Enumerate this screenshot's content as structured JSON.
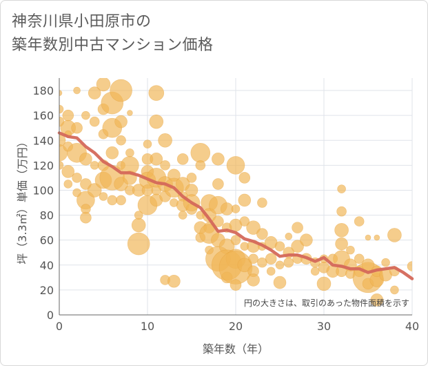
{
  "chart_data": {
    "type": "scatter",
    "title_lines": [
      "神奈川県小田原市の",
      "築年数別中古マンション価格"
    ],
    "xlabel": "築年数（年）",
    "ylabel": "坪（3.3㎡）単価（万円）",
    "xlim": [
      0,
      40
    ],
    "ylim": [
      0,
      190
    ],
    "x_ticks": [
      0,
      10,
      20,
      30,
      40
    ],
    "y_ticks": [
      0,
      20,
      40,
      60,
      80,
      100,
      120,
      140,
      160,
      180
    ],
    "grid": true,
    "note": "円の大きさは、取引のあった物件面積を示す",
    "colors": {
      "bubble": "#f0b555",
      "trend": "#d4685a",
      "grid": "#dfe3ea"
    },
    "bubbles": [
      [
        0,
        178,
        4
      ],
      [
        0,
        165,
        6
      ],
      [
        0,
        155,
        7
      ],
      [
        0,
        140,
        9
      ],
      [
        0,
        130,
        12
      ],
      [
        0,
        120,
        6
      ],
      [
        1,
        160,
        8
      ],
      [
        1,
        150,
        11
      ],
      [
        1,
        135,
        7
      ],
      [
        1,
        115,
        9
      ],
      [
        1,
        105,
        6
      ],
      [
        1,
        145,
        5
      ],
      [
        2,
        180,
        5
      ],
      [
        2,
        150,
        8
      ],
      [
        2,
        130,
        14
      ],
      [
        2,
        110,
        7
      ],
      [
        2,
        98,
        6
      ],
      [
        3,
        160,
        6
      ],
      [
        3,
        125,
        9
      ],
      [
        3,
        105,
        8
      ],
      [
        3,
        92,
        13
      ],
      [
        3,
        85,
        7
      ],
      [
        3,
        78,
        8
      ],
      [
        4,
        178,
        9
      ],
      [
        4,
        155,
        7
      ],
      [
        4,
        120,
        6
      ],
      [
        4,
        100,
        10
      ],
      [
        5,
        185,
        10
      ],
      [
        5,
        165,
        8
      ],
      [
        5,
        145,
        7
      ],
      [
        5,
        120,
        8
      ],
      [
        5,
        108,
        12
      ],
      [
        5,
        95,
        6
      ],
      [
        6,
        170,
        16
      ],
      [
        6,
        150,
        14
      ],
      [
        6,
        130,
        9
      ],
      [
        6,
        110,
        18
      ],
      [
        6,
        92,
        7
      ],
      [
        7,
        180,
        16
      ],
      [
        7,
        155,
        9
      ],
      [
        7,
        140,
        7
      ],
      [
        7,
        120,
        6
      ],
      [
        7,
        105,
        10
      ],
      [
        7,
        92,
        7
      ],
      [
        8,
        162,
        4
      ],
      [
        8,
        130,
        6
      ],
      [
        8,
        120,
        13
      ],
      [
        8,
        110,
        10
      ],
      [
        8,
        100,
        7
      ],
      [
        9,
        100,
        9
      ],
      [
        9,
        72,
        10
      ],
      [
        9,
        57,
        16
      ],
      [
        9,
        80,
        6
      ],
      [
        10,
        137,
        6
      ],
      [
        10,
        125,
        8
      ],
      [
        10,
        115,
        9
      ],
      [
        10,
        108,
        12
      ],
      [
        10,
        100,
        8
      ],
      [
        10,
        88,
        14
      ],
      [
        11,
        178,
        11
      ],
      [
        11,
        155,
        10
      ],
      [
        11,
        125,
        9
      ],
      [
        11,
        110,
        14
      ],
      [
        11,
        100,
        7
      ],
      [
        11,
        92,
        9
      ],
      [
        12,
        140,
        10
      ],
      [
        12,
        120,
        7
      ],
      [
        12,
        105,
        11
      ],
      [
        12,
        95,
        8
      ],
      [
        12,
        28,
        7
      ],
      [
        13,
        112,
        9
      ],
      [
        13,
        102,
        14
      ],
      [
        13,
        27,
        9
      ],
      [
        13,
        90,
        6
      ],
      [
        14,
        125,
        8
      ],
      [
        14,
        105,
        10
      ],
      [
        14,
        95,
        7
      ],
      [
        14,
        88,
        9
      ],
      [
        14,
        80,
        6
      ],
      [
        15,
        110,
        7
      ],
      [
        15,
        100,
        9
      ],
      [
        15,
        85,
        8
      ],
      [
        15,
        90,
        12
      ],
      [
        16,
        130,
        14
      ],
      [
        16,
        120,
        7
      ],
      [
        16,
        80,
        6
      ],
      [
        16,
        70,
        9
      ],
      [
        16,
        62,
        7
      ],
      [
        17,
        90,
        12
      ],
      [
        17,
        80,
        10
      ],
      [
        17,
        70,
        8
      ],
      [
        17,
        65,
        14
      ],
      [
        17,
        52,
        6
      ],
      [
        18,
        125,
        9
      ],
      [
        18,
        105,
        8
      ],
      [
        18,
        88,
        13
      ],
      [
        18,
        75,
        8
      ],
      [
        18,
        60,
        10
      ],
      [
        18,
        45,
        18
      ],
      [
        19,
        85,
        9
      ],
      [
        19,
        70,
        7
      ],
      [
        19,
        55,
        11
      ],
      [
        19,
        40,
        22
      ],
      [
        19,
        30,
        8
      ],
      [
        20,
        120,
        13
      ],
      [
        20,
        85,
        6
      ],
      [
        20,
        72,
        9
      ],
      [
        20,
        60,
        7
      ],
      [
        20,
        45,
        14
      ],
      [
        20,
        38,
        24
      ],
      [
        20,
        24,
        8
      ],
      [
        21,
        110,
        8
      ],
      [
        21,
        92,
        9
      ],
      [
        21,
        75,
        7
      ],
      [
        21,
        55,
        6
      ],
      [
        21,
        40,
        10
      ],
      [
        22,
        70,
        10
      ],
      [
        22,
        55,
        9
      ],
      [
        22,
        45,
        7
      ],
      [
        22,
        35,
        8
      ],
      [
        22,
        28,
        9
      ],
      [
        23,
        90,
        7
      ],
      [
        23,
        65,
        8
      ],
      [
        23,
        55,
        6
      ],
      [
        23,
        42,
        7
      ],
      [
        24,
        58,
        9
      ],
      [
        24,
        45,
        8
      ],
      [
        24,
        35,
        6
      ],
      [
        25,
        55,
        7
      ],
      [
        25,
        40,
        6
      ],
      [
        25,
        26,
        9
      ],
      [
        26,
        50,
        8
      ],
      [
        26,
        42,
        7
      ],
      [
        26,
        63,
        5
      ],
      [
        27,
        70,
        8
      ],
      [
        27,
        55,
        9
      ],
      [
        27,
        45,
        7
      ],
      [
        28,
        60,
        9
      ],
      [
        28,
        45,
        8
      ],
      [
        29,
        42,
        7
      ],
      [
        29,
        35,
        6
      ],
      [
        30,
        25,
        10
      ],
      [
        30,
        38,
        8
      ],
      [
        30,
        45,
        6
      ],
      [
        31,
        35,
        9
      ],
      [
        31,
        45,
        7
      ],
      [
        32,
        101,
        6
      ],
      [
        32,
        83,
        7
      ],
      [
        32,
        68,
        10
      ],
      [
        32,
        57,
        9
      ],
      [
        32,
        45,
        12
      ],
      [
        32,
        35,
        8
      ],
      [
        33,
        40,
        9
      ],
      [
        33,
        33,
        7
      ],
      [
        33,
        52,
        6
      ],
      [
        34,
        45,
        7
      ],
      [
        34,
        75,
        7
      ],
      [
        34,
        35,
        8
      ],
      [
        35,
        30,
        22
      ],
      [
        35,
        40,
        9
      ],
      [
        35,
        25,
        8
      ],
      [
        35,
        62,
        4
      ],
      [
        36,
        28,
        10
      ],
      [
        36,
        12,
        9
      ],
      [
        36,
        35,
        8
      ],
      [
        36,
        62,
        4
      ],
      [
        37,
        32,
        9
      ],
      [
        37,
        42,
        6
      ],
      [
        38,
        64,
        10
      ],
      [
        38,
        35,
        7
      ],
      [
        38,
        20,
        6
      ],
      [
        40,
        39,
        7
      ]
    ],
    "trend": {
      "x": [
        0,
        1,
        2,
        3,
        4,
        5,
        6,
        7,
        8,
        9,
        10,
        11,
        12,
        13,
        14,
        15,
        16,
        17,
        18,
        19,
        20,
        21,
        22,
        23,
        24,
        25,
        26,
        27,
        28,
        29,
        30,
        31,
        32,
        33,
        34,
        35,
        36,
        37,
        38,
        39,
        40
      ],
      "y": [
        146,
        143,
        142,
        135,
        130,
        123,
        119,
        114,
        114,
        112,
        109,
        106,
        105,
        102,
        95,
        90,
        86,
        77,
        67,
        68,
        66,
        61,
        59,
        56,
        52,
        47,
        48,
        48,
        46,
        43,
        46,
        40,
        39,
        37,
        37,
        34,
        36,
        37,
        38,
        34,
        29
      ]
    }
  }
}
